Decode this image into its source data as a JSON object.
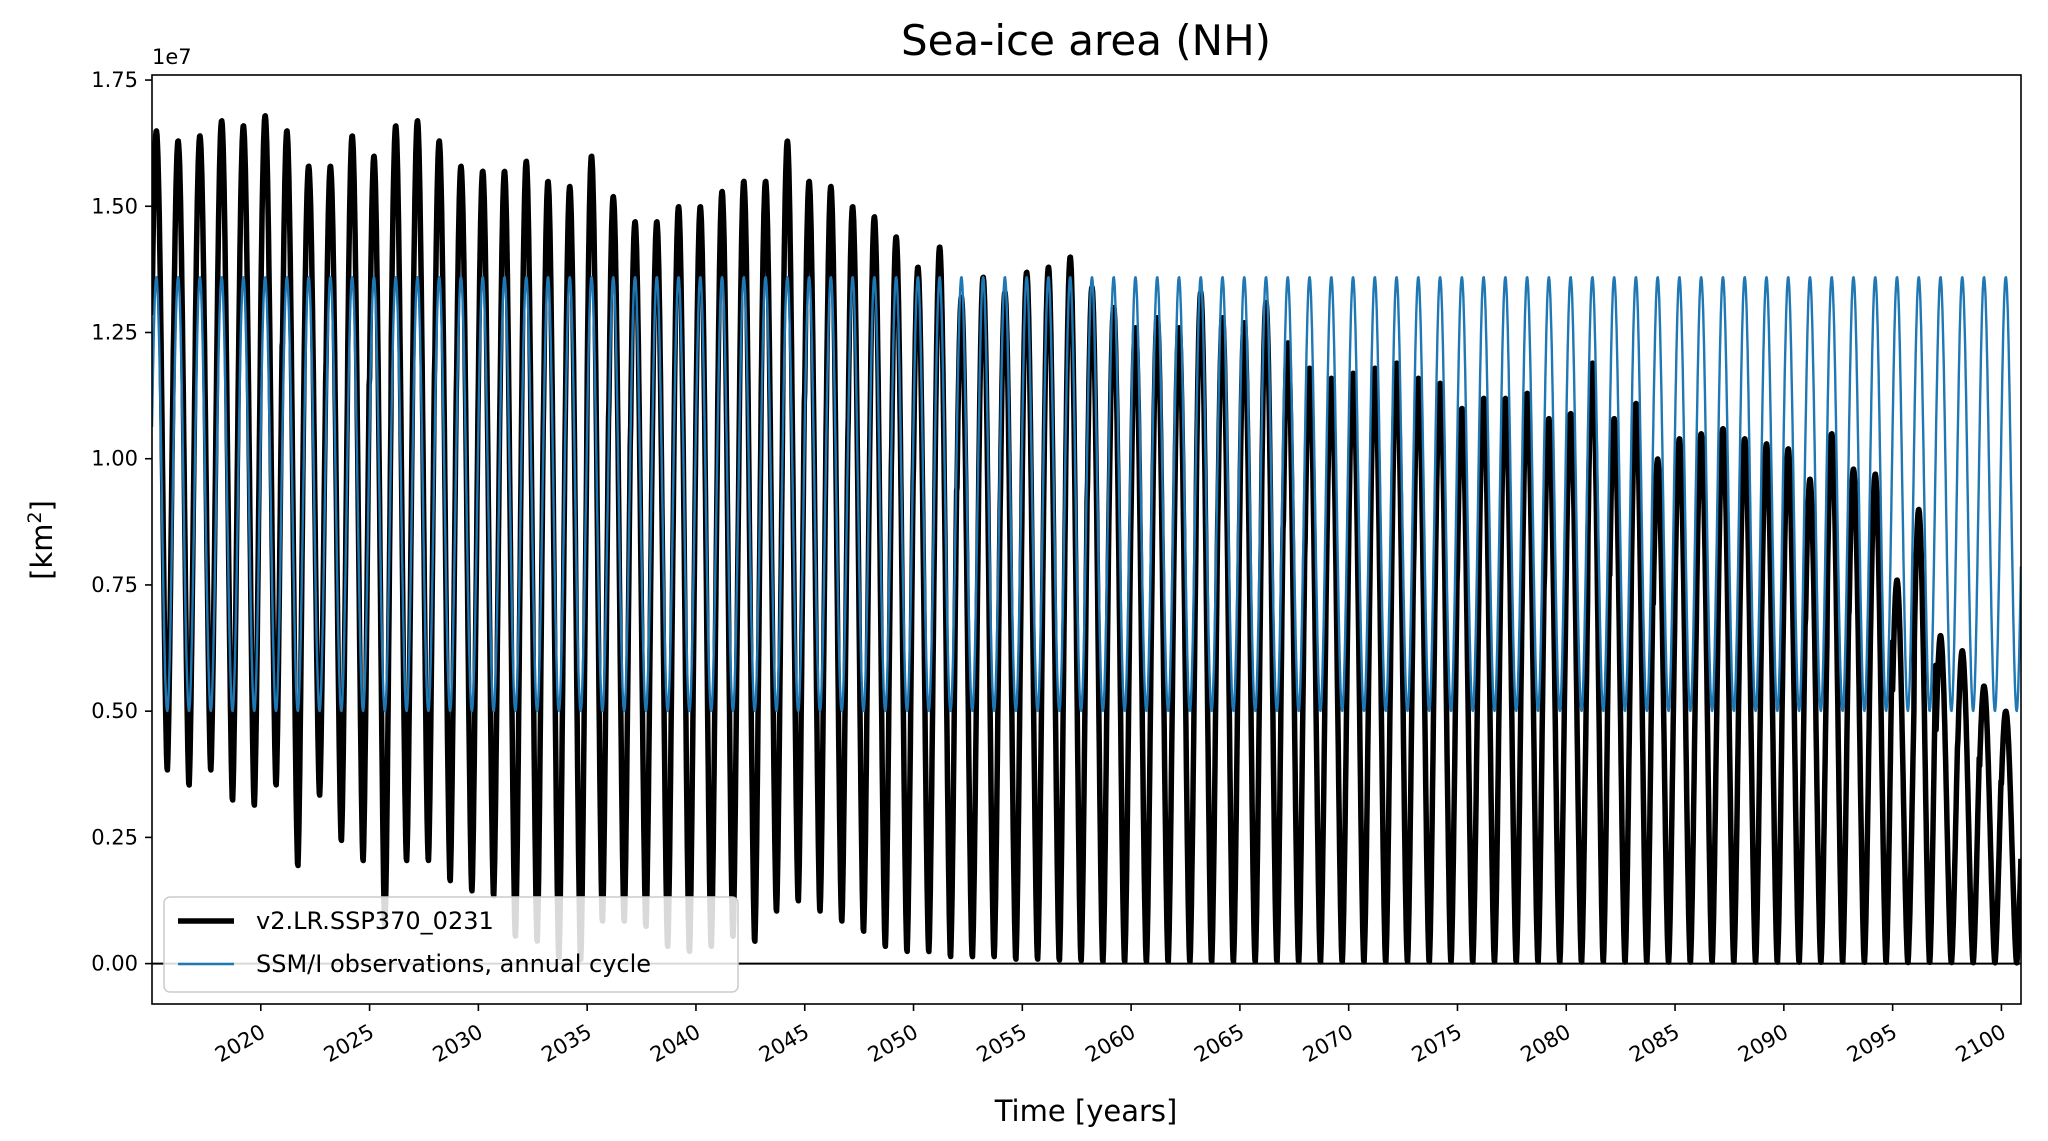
{
  "chart_data": {
    "type": "line",
    "title": "Sea-ice area (NH)",
    "xlabel": "Time [years]",
    "ylabel": "[km²]",
    "ylabel_main": "[km",
    "ylabel_sup": "2",
    "ylabel_close": "]",
    "y_offset_label": "1e7",
    "xlim": [
      2015.0,
      2100.9
    ],
    "ylim": [
      -0.08,
      1.76
    ],
    "y_scale": 10000000,
    "x_ticks": [
      2020,
      2025,
      2030,
      2035,
      2040,
      2045,
      2050,
      2055,
      2060,
      2065,
      2070,
      2075,
      2080,
      2085,
      2090,
      2095,
      2100
    ],
    "x_tick_labels": [
      "2020",
      "2025",
      "2030",
      "2035",
      "2040",
      "2045",
      "2050",
      "2055",
      "2060",
      "2065",
      "2070",
      "2075",
      "2080",
      "2085",
      "2090",
      "2095",
      "2100"
    ],
    "y_ticks": [
      0.0,
      0.25,
      0.5,
      0.75,
      1.0,
      1.25,
      1.5,
      1.75
    ],
    "y_tick_labels": [
      "0.00",
      "0.25",
      "0.50",
      "0.75",
      "1.00",
      "1.25",
      "1.50",
      "1.75"
    ],
    "legend_position": "lower-left",
    "series": [
      {
        "name": "v2.LR.SSP370_0231",
        "color": "#000000",
        "style": "thick",
        "annual_max": [
          1.65,
          1.63,
          1.64,
          1.67,
          1.66,
          1.68,
          1.65,
          1.58,
          1.58,
          1.64,
          1.6,
          1.66,
          1.67,
          1.63,
          1.58,
          1.57,
          1.57,
          1.59,
          1.55,
          1.54,
          1.6,
          1.52,
          1.47,
          1.47,
          1.5,
          1.5,
          1.53,
          1.55,
          1.55,
          1.63,
          1.55,
          1.54,
          1.5,
          1.48,
          1.44,
          1.38,
          1.42,
          1.32,
          1.36,
          1.33,
          1.37,
          1.38,
          1.4,
          1.34,
          1.3,
          1.26,
          1.28,
          1.26,
          1.33,
          1.28,
          1.27,
          1.31,
          1.23,
          1.18,
          1.16,
          1.17,
          1.18,
          1.19,
          1.16,
          1.15,
          1.1,
          1.12,
          1.12,
          1.13,
          1.08,
          1.09,
          1.19,
          1.08,
          1.11,
          1.0,
          1.04,
          1.05,
          1.06,
          1.04,
          1.03,
          1.02,
          0.96,
          1.05,
          0.98,
          0.97,
          0.76,
          0.9,
          0.65,
          0.62,
          0.55,
          0.5
        ],
        "annual_min": [
          0.38,
          0.35,
          0.38,
          0.32,
          0.31,
          0.35,
          0.19,
          0.33,
          0.24,
          0.2,
          0.07,
          0.2,
          0.2,
          0.16,
          0.14,
          0.13,
          0.05,
          0.04,
          0.008,
          0.004,
          0.08,
          0.08,
          0.07,
          0.03,
          0.02,
          0.03,
          0.05,
          0.04,
          0.1,
          0.12,
          0.1,
          0.08,
          0.06,
          0.03,
          0.02,
          0.02,
          0.01,
          0.01,
          0.01,
          0.005,
          0.005,
          0.003,
          0.002,
          0.0,
          0.0,
          0.0,
          0.0,
          0.0,
          0.0,
          0.0,
          0.0,
          0.0,
          0.0,
          0.0,
          0.0,
          0.0,
          0.0,
          0.0,
          0.0,
          0.0,
          0.0,
          0.0,
          0.0,
          0.0,
          0.0,
          0.0,
          0.0,
          0.0,
          0.0,
          0.0,
          0.0,
          0.0,
          0.0,
          0.0,
          0.0,
          0.0,
          0.0,
          0.0,
          0.0,
          0.0,
          0.0,
          0.0,
          0.0,
          0.0,
          0.0,
          0.0
        ]
      },
      {
        "name": "SSM/I observations, annual cycle",
        "color": "#1f77b4",
        "style": "thin",
        "annual_max": 1.36,
        "annual_min": 0.5
      }
    ]
  }
}
